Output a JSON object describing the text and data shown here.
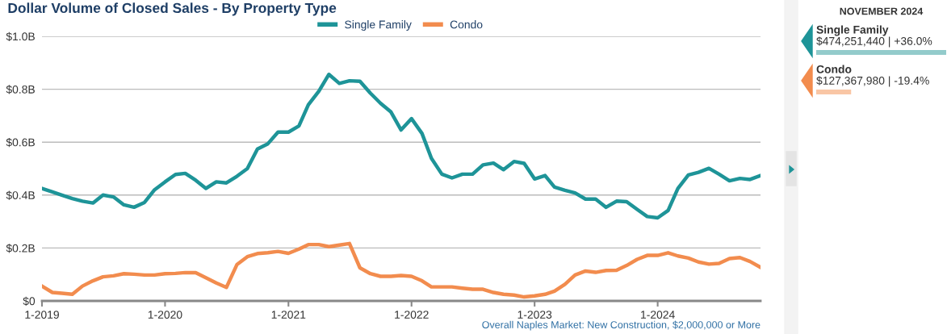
{
  "chart_data": [
    {
      "type": "line",
      "title": "Dollar Volume of Closed Sales - By Property Type",
      "x": [
        "2019-01",
        "2019-02",
        "2019-03",
        "2019-04",
        "2019-05",
        "2019-06",
        "2019-07",
        "2019-08",
        "2019-09",
        "2019-10",
        "2019-11",
        "2019-12",
        "2020-01",
        "2020-02",
        "2020-03",
        "2020-04",
        "2020-05",
        "2020-06",
        "2020-07",
        "2020-08",
        "2020-09",
        "2020-10",
        "2020-11",
        "2020-12",
        "2021-01",
        "2021-02",
        "2021-03",
        "2021-04",
        "2021-05",
        "2021-06",
        "2021-07",
        "2021-08",
        "2021-09",
        "2021-10",
        "2021-11",
        "2021-12",
        "2022-01",
        "2022-02",
        "2022-03",
        "2022-04",
        "2022-05",
        "2022-06",
        "2022-07",
        "2022-08",
        "2022-09",
        "2022-10",
        "2022-11",
        "2022-12",
        "2023-01",
        "2023-02",
        "2023-03",
        "2023-04",
        "2023-05",
        "2023-06",
        "2023-07",
        "2023-08",
        "2023-09",
        "2023-10",
        "2023-11",
        "2023-12",
        "2024-01",
        "2024-02",
        "2024-03",
        "2024-04",
        "2024-05",
        "2024-06",
        "2024-07",
        "2024-08",
        "2024-09",
        "2024-10",
        "2024-11"
      ],
      "series": [
        {
          "name": "Single Family",
          "color": "#1e9498",
          "values": [
            0.425,
            0.412,
            0.4,
            0.387,
            0.377,
            0.37,
            0.4,
            0.393,
            0.363,
            0.354,
            0.372,
            0.42,
            0.45,
            0.478,
            0.482,
            0.456,
            0.425,
            0.45,
            0.446,
            0.471,
            0.5,
            0.574,
            0.594,
            0.638,
            0.638,
            0.661,
            0.741,
            0.792,
            0.856,
            0.822,
            0.832,
            0.83,
            0.785,
            0.747,
            0.714,
            0.646,
            0.689,
            0.633,
            0.539,
            0.479,
            0.465,
            0.479,
            0.479,
            0.514,
            0.521,
            0.496,
            0.527,
            0.52,
            0.461,
            0.474,
            0.43,
            0.418,
            0.408,
            0.385,
            0.385,
            0.354,
            0.377,
            0.375,
            0.346,
            0.319,
            0.314,
            0.342,
            0.425,
            0.476,
            0.486,
            0.501,
            0.479,
            0.454,
            0.463,
            0.459,
            0.474
          ]
        },
        {
          "name": "Condo",
          "color": "#f28c4e",
          "values": [
            0.056,
            0.032,
            0.029,
            0.025,
            0.056,
            0.076,
            0.091,
            0.095,
            0.103,
            0.101,
            0.098,
            0.098,
            0.103,
            0.104,
            0.107,
            0.107,
            0.088,
            0.068,
            0.051,
            0.137,
            0.167,
            0.179,
            0.182,
            0.187,
            0.18,
            0.196,
            0.213,
            0.213,
            0.205,
            0.211,
            0.217,
            0.125,
            0.103,
            0.093,
            0.093,
            0.096,
            0.093,
            0.076,
            0.053,
            0.053,
            0.053,
            0.048,
            0.044,
            0.044,
            0.032,
            0.025,
            0.022,
            0.015,
            0.019,
            0.025,
            0.037,
            0.063,
            0.098,
            0.113,
            0.108,
            0.115,
            0.116,
            0.134,
            0.157,
            0.172,
            0.172,
            0.182,
            0.17,
            0.162,
            0.147,
            0.139,
            0.142,
            0.16,
            0.164,
            0.149,
            0.127
          ]
        }
      ],
      "xlim": [
        "2019-01",
        "2024-11"
      ],
      "xticks": [
        {
          "value": "2019-01",
          "label": "1-2019"
        },
        {
          "value": "2020-01",
          "label": "1-2020"
        },
        {
          "value": "2021-01",
          "label": "1-2021"
        },
        {
          "value": "2022-01",
          "label": "1-2022"
        },
        {
          "value": "2023-01",
          "label": "1-2023"
        },
        {
          "value": "2024-01",
          "label": "1-2024"
        }
      ],
      "ylim": [
        0,
        1.0
      ],
      "yticks": [
        {
          "value": 0,
          "label": "$0"
        },
        {
          "value": 0.2,
          "label": "$0.2B"
        },
        {
          "value": 0.4,
          "label": "$0.4B"
        },
        {
          "value": 0.6,
          "label": "$0.6B"
        },
        {
          "value": 0.8,
          "label": "$0.8B"
        },
        {
          "value": 1.0,
          "label": "$1.0B"
        }
      ],
      "grid": "y",
      "legend": "top",
      "marker": "none",
      "line_style": "solid",
      "annotations": [
        "Overall Naples Market: New Construction, $2,000,000 or More"
      ]
    },
    {
      "type": "bar",
      "orientation": "horizontal",
      "title": "NOVEMBER 2024",
      "categories": [
        "Single Family",
        "Condo"
      ],
      "values": [
        474251440,
        127367980
      ],
      "colors": [
        "#93cbcb",
        "#f9c6a5"
      ],
      "value_labels": [
        "$474,251,440 | +36.0%",
        "$127,367,980 | -19.4%"
      ]
    }
  ]
}
